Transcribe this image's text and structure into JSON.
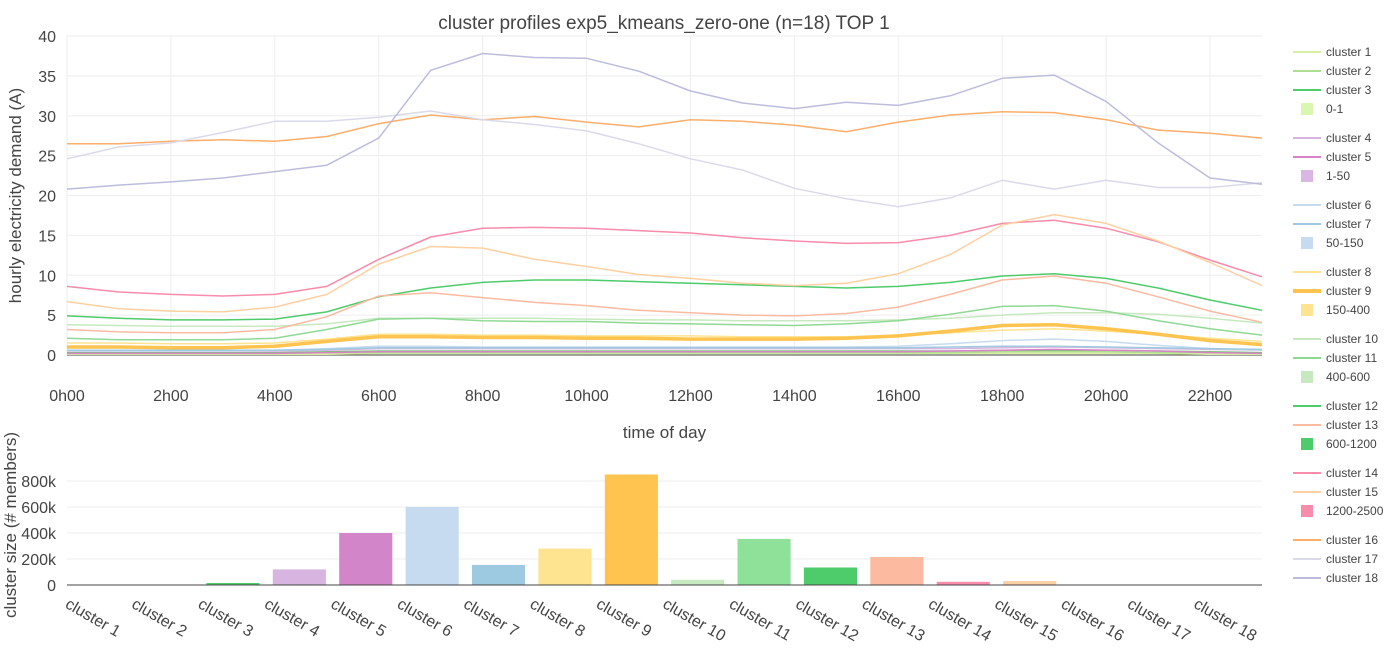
{
  "title": "cluster profiles exp5_kmeans_zero-one (n=18) TOP 1",
  "chart_data": [
    {
      "type": "line",
      "xlabel": "time of day",
      "ylabel": "hourly electricity demand (A)",
      "xlim": [
        0,
        23
      ],
      "ylim": [
        0,
        40
      ],
      "x_ticks": [
        0,
        2,
        4,
        6,
        8,
        10,
        12,
        14,
        16,
        18,
        20,
        22
      ],
      "x_tick_labels": [
        "0h00",
        "2h00",
        "4h00",
        "6h00",
        "8h00",
        "10h00",
        "12h00",
        "14h00",
        "16h00",
        "18h00",
        "20h00",
        "22h00"
      ],
      "y_ticks": [
        0,
        5,
        10,
        15,
        20,
        25,
        30,
        35,
        40
      ],
      "y_tick_labels": [
        "0",
        "5",
        "10",
        "15",
        "20",
        "25",
        "30",
        "35",
        "40"
      ],
      "grid": true,
      "x": [
        0,
        1,
        2,
        3,
        4,
        5,
        6,
        7,
        8,
        9,
        10,
        11,
        12,
        13,
        14,
        15,
        16,
        17,
        18,
        19,
        20,
        21,
        22,
        23
      ],
      "series": [
        {
          "name": "cluster 1",
          "color": "#d9f0a3",
          "width": 1.5,
          "values": [
            0.1,
            0.1,
            0.1,
            0.1,
            0.1,
            0.1,
            0.2,
            0.2,
            0.2,
            0.2,
            0.2,
            0.2,
            0.2,
            0.2,
            0.2,
            0.2,
            0.2,
            0.2,
            0.2,
            0.2,
            0.2,
            0.2,
            0.1,
            0.1
          ]
        },
        {
          "name": "cluster 2",
          "color": "#addd8e",
          "width": 1.5,
          "values": [
            0.2,
            0.2,
            0.2,
            0.2,
            0.2,
            0.3,
            0.3,
            0.3,
            0.3,
            0.3,
            0.3,
            0.3,
            0.3,
            0.3,
            0.3,
            0.3,
            0.3,
            0.3,
            0.4,
            0.4,
            0.4,
            0.3,
            0.3,
            0.2
          ]
        },
        {
          "name": "cluster 3",
          "color": "#78c679",
          "width": 1.5,
          "values": [
            0.3,
            0.3,
            0.3,
            0.3,
            0.3,
            0.4,
            0.5,
            0.5,
            0.5,
            0.5,
            0.5,
            0.5,
            0.5,
            0.5,
            0.5,
            0.5,
            0.5,
            0.5,
            0.6,
            0.6,
            0.6,
            0.5,
            0.4,
            0.3
          ]
        },
        {
          "name": "cluster 4",
          "color": "#d8b5e0",
          "width": 1.5,
          "values": [
            0.5,
            0.5,
            0.5,
            0.5,
            0.5,
            0.6,
            0.8,
            0.8,
            0.8,
            0.8,
            0.8,
            0.8,
            0.8,
            0.8,
            0.8,
            0.8,
            0.8,
            0.8,
            0.9,
            1.0,
            0.9,
            0.8,
            0.7,
            0.6
          ]
        },
        {
          "name": "cluster 5",
          "color": "#d883c8",
          "width": 1.5,
          "values": [
            0.2,
            0.2,
            0.2,
            0.2,
            0.2,
            0.3,
            0.4,
            0.4,
            0.4,
            0.4,
            0.4,
            0.4,
            0.4,
            0.4,
            0.4,
            0.4,
            0.4,
            0.5,
            0.6,
            0.7,
            0.6,
            0.5,
            0.3,
            0.2
          ]
        },
        {
          "name": "cluster 6",
          "color": "#c6dbef",
          "width": 1.5,
          "values": [
            0.5,
            0.5,
            0.5,
            0.5,
            0.6,
            0.8,
            1.1,
            1.1,
            1.0,
            1.0,
            1.0,
            1.0,
            1.0,
            1.0,
            1.0,
            1.0,
            1.1,
            1.4,
            1.8,
            2.0,
            1.7,
            1.2,
            0.8,
            0.6
          ]
        },
        {
          "name": "cluster 7",
          "color": "#9ecae1",
          "width": 1.5,
          "values": [
            0.6,
            0.6,
            0.6,
            0.6,
            0.6,
            0.7,
            0.9,
            0.9,
            0.9,
            0.9,
            0.9,
            0.9,
            0.9,
            0.9,
            0.9,
            0.9,
            0.9,
            1.0,
            1.1,
            1.1,
            1.0,
            0.9,
            0.8,
            0.7
          ]
        },
        {
          "name": "cluster 8",
          "color": "#fee391",
          "width": 1.5,
          "values": [
            1.5,
            1.5,
            1.4,
            1.4,
            1.5,
            2.0,
            2.6,
            2.6,
            2.5,
            2.5,
            2.4,
            2.4,
            2.4,
            2.3,
            2.3,
            2.3,
            2.5,
            2.8,
            3.1,
            3.3,
            3.0,
            2.6,
            2.1,
            1.7
          ]
        },
        {
          "name": "cluster 9",
          "color": "#fec44f",
          "width": 3.5,
          "values": [
            1.0,
            1.0,
            0.9,
            0.9,
            1.1,
            1.7,
            2.3,
            2.3,
            2.2,
            2.2,
            2.1,
            2.1,
            2.0,
            2.0,
            2.0,
            2.1,
            2.4,
            3.0,
            3.7,
            3.8,
            3.3,
            2.6,
            1.8,
            1.3
          ]
        },
        {
          "name": "cluster 10",
          "color": "#c7e9c0",
          "width": 1.5,
          "values": [
            3.8,
            3.7,
            3.6,
            3.6,
            3.6,
            3.9,
            4.6,
            4.6,
            4.6,
            4.6,
            4.5,
            4.4,
            4.4,
            4.3,
            4.3,
            4.3,
            4.4,
            4.6,
            5.0,
            5.3,
            5.3,
            5.1,
            4.6,
            4.0
          ]
        },
        {
          "name": "cluster 11",
          "color": "#8fd994",
          "width": 1.5,
          "values": [
            2.1,
            1.9,
            1.9,
            1.9,
            2.1,
            3.2,
            4.5,
            4.6,
            4.3,
            4.2,
            4.2,
            4.0,
            3.9,
            3.8,
            3.7,
            3.9,
            4.3,
            5.1,
            6.1,
            6.2,
            5.5,
            4.3,
            3.3,
            2.5
          ]
        },
        {
          "name": "cluster 12",
          "color": "#4ecb6b",
          "width": 1.5,
          "values": [
            4.9,
            4.6,
            4.4,
            4.4,
            4.5,
            5.4,
            7.3,
            8.4,
            9.1,
            9.4,
            9.4,
            9.2,
            9.0,
            8.8,
            8.6,
            8.4,
            8.6,
            9.1,
            9.9,
            10.2,
            9.6,
            8.4,
            6.9,
            5.6
          ]
        },
        {
          "name": "cluster 13",
          "color": "#fcbba1",
          "width": 1.5,
          "values": [
            3.2,
            2.9,
            2.8,
            2.8,
            3.2,
            4.8,
            7.4,
            7.8,
            7.2,
            6.6,
            6.2,
            5.6,
            5.3,
            5.0,
            4.9,
            5.2,
            6.0,
            7.6,
            9.4,
            9.9,
            9.0,
            7.3,
            5.5,
            4.1
          ]
        },
        {
          "name": "cluster 14",
          "color": "#f98bab",
          "width": 1.5,
          "values": [
            8.6,
            7.9,
            7.6,
            7.4,
            7.6,
            8.6,
            12.0,
            14.8,
            15.9,
            16.0,
            15.9,
            15.6,
            15.3,
            14.7,
            14.3,
            14.0,
            14.1,
            15.0,
            16.5,
            16.9,
            15.9,
            14.2,
            11.9,
            9.8
          ]
        },
        {
          "name": "cluster 15",
          "color": "#fdd0a2",
          "width": 1.5,
          "values": [
            6.7,
            5.8,
            5.5,
            5.4,
            6.0,
            7.6,
            11.4,
            13.6,
            13.4,
            12.0,
            11.1,
            10.1,
            9.6,
            9.0,
            8.7,
            9.0,
            10.2,
            12.6,
            16.3,
            17.6,
            16.5,
            14.3,
            11.6,
            8.7
          ]
        },
        {
          "name": "cluster 16",
          "color": "#fdae6b",
          "width": 1.5,
          "values": [
            26.5,
            26.5,
            26.8,
            27.0,
            26.8,
            27.4,
            29.0,
            30.1,
            29.5,
            29.9,
            29.2,
            28.6,
            29.5,
            29.3,
            28.8,
            28.0,
            29.2,
            30.1,
            30.5,
            30.4,
            29.5,
            28.2,
            27.8,
            27.2
          ]
        },
        {
          "name": "cluster 17",
          "color": "#dadaeb",
          "width": 1.5,
          "values": [
            24.6,
            26.1,
            26.6,
            27.9,
            29.3,
            29.3,
            29.8,
            30.6,
            29.5,
            28.9,
            28.1,
            26.5,
            24.6,
            23.2,
            20.9,
            19.6,
            18.6,
            19.7,
            21.9,
            20.8,
            21.9,
            21.0,
            21.0,
            21.6
          ]
        },
        {
          "name": "cluster 18",
          "color": "#bcbddc",
          "width": 1.5,
          "values": [
            20.8,
            21.3,
            21.7,
            22.2,
            23.0,
            23.8,
            27.2,
            35.7,
            37.8,
            37.3,
            37.2,
            35.6,
            33.1,
            31.6,
            30.9,
            31.7,
            31.3,
            32.5,
            34.7,
            35.1,
            31.8,
            26.6,
            22.2,
            21.4
          ]
        }
      ]
    },
    {
      "type": "bar",
      "ylabel": "cluster size (# members)",
      "ylim": [
        0,
        900000
      ],
      "y_ticks": [
        0,
        200000,
        400000,
        600000,
        800000
      ],
      "y_tick_labels": [
        "0",
        "200k",
        "400k",
        "600k",
        "800k"
      ],
      "categories": [
        "cluster 1",
        "cluster 2",
        "cluster 3",
        "cluster 4",
        "cluster 5",
        "cluster 6",
        "cluster 7",
        "cluster 8",
        "cluster 9",
        "cluster 10",
        "cluster 11",
        "cluster 12",
        "cluster 13",
        "cluster 14",
        "cluster 15",
        "cluster 16",
        "cluster 17",
        "cluster 18"
      ],
      "values": [
        1500,
        2500,
        15000,
        120000,
        400000,
        600000,
        155000,
        280000,
        850000,
        40000,
        355000,
        135000,
        215000,
        25000,
        30000,
        3000,
        1500,
        1000
      ],
      "colors": [
        "#d9f0a3",
        "#addd8e",
        "#4ecb6b",
        "#d8b5e0",
        "#d285c9",
        "#c6dbef",
        "#9ecae1",
        "#fee391",
        "#fec44f",
        "#c7e9c0",
        "#8fe19a",
        "#4ecb6b",
        "#fcbba1",
        "#f98bab",
        "#fdd0a2",
        "#fdae6b",
        "#dadaeb",
        "#bcbddc"
      ]
    }
  ],
  "legend": {
    "placement": "right",
    "groups": [
      {
        "items": [
          {
            "label": "cluster 1",
            "color": "#d9f0a3",
            "kind": "line"
          },
          {
            "label": "cluster 2",
            "color": "#addd8e",
            "kind": "line"
          },
          {
            "label": "cluster 3",
            "color": "#4ecb6b",
            "kind": "line"
          },
          {
            "label": "0-1",
            "color": "#d9f7b0",
            "kind": "box"
          }
        ]
      },
      {
        "items": [
          {
            "label": "cluster 4",
            "color": "#d8b5e0",
            "kind": "line"
          },
          {
            "label": "cluster 5",
            "color": "#d883c8",
            "kind": "line"
          },
          {
            "label": "1-50",
            "color": "#d9b6e3",
            "kind": "box"
          }
        ]
      },
      {
        "items": [
          {
            "label": "cluster 6",
            "color": "#c6dbef",
            "kind": "line"
          },
          {
            "label": "cluster 7",
            "color": "#9ecae1",
            "kind": "line"
          },
          {
            "label": "50-150",
            "color": "#c6dbef",
            "kind": "box"
          }
        ]
      },
      {
        "items": [
          {
            "label": "cluster 8",
            "color": "#fee391",
            "kind": "line"
          },
          {
            "label": "cluster 9",
            "color": "#fec44f",
            "kind": "thick"
          },
          {
            "label": "150-400",
            "color": "#fee391",
            "kind": "box"
          }
        ]
      },
      {
        "items": [
          {
            "label": "cluster 10",
            "color": "#c7e9c0",
            "kind": "line"
          },
          {
            "label": "cluster 11",
            "color": "#8fd994",
            "kind": "line"
          },
          {
            "label": "400-600",
            "color": "#c7e9c0",
            "kind": "box"
          }
        ]
      },
      {
        "items": [
          {
            "label": "cluster 12",
            "color": "#4ecb6b",
            "kind": "line"
          },
          {
            "label": "cluster 13",
            "color": "#fcbba1",
            "kind": "line"
          },
          {
            "label": "600-1200",
            "color": "#4ecb6b",
            "kind": "box"
          }
        ]
      },
      {
        "items": [
          {
            "label": "cluster 14",
            "color": "#f98bab",
            "kind": "line"
          },
          {
            "label": "cluster 15",
            "color": "#fdd0a2",
            "kind": "line"
          },
          {
            "label": "1200-2500",
            "color": "#f98bab",
            "kind": "box"
          }
        ]
      },
      {
        "items": [
          {
            "label": "cluster 16",
            "color": "#fdae6b",
            "kind": "line"
          },
          {
            "label": "cluster 17",
            "color": "#dadaeb",
            "kind": "line"
          },
          {
            "label": "cluster 18",
            "color": "#bcbddc",
            "kind": "line"
          }
        ]
      }
    ]
  }
}
